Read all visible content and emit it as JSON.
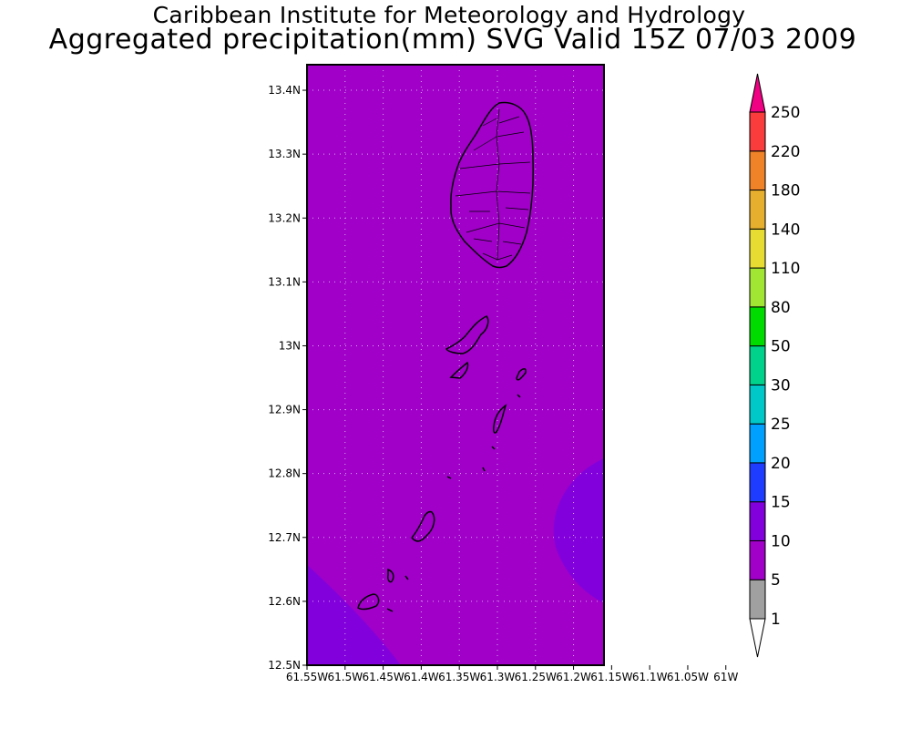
{
  "header": {
    "institute": "Caribbean Institute for Meteorology and Hydrology",
    "product": "Aggregated precipitation(mm) SVG Valid 15Z 07/03 2009"
  },
  "map": {
    "lat_ticks": [
      "12.5N",
      "12.6N",
      "12.7N",
      "12.8N",
      "12.9N",
      "13N",
      "13.1N",
      "13.2N",
      "13.3N",
      "13.4N"
    ],
    "lat_values": [
      12.5,
      12.6,
      12.7,
      12.8,
      12.9,
      13.0,
      13.1,
      13.2,
      13.3,
      13.4
    ],
    "lon_ticks": [
      "61.55W",
      "61.5W",
      "61.45W",
      "61.4W",
      "61.35W",
      "61.3W",
      "61.25W",
      "61.2W",
      "61.15W",
      "61.1W",
      "61.05W",
      "61W"
    ],
    "lon_values": [
      -61.55,
      -61.5,
      -61.45,
      -61.4,
      -61.35,
      -61.3,
      -61.25,
      -61.2,
      -61.15,
      -61.1,
      -61.05,
      -61.0
    ],
    "lat_range": [
      12.5,
      13.44
    ],
    "lon_range": [
      -61.55,
      -61.16
    ],
    "grid": true,
    "fill_color": "#a000c8",
    "wetter_color": "#8200dc"
  },
  "colorbar": {
    "levels": [
      "1",
      "5",
      "10",
      "15",
      "20",
      "25",
      "30",
      "50",
      "80",
      "110",
      "140",
      "180",
      "220",
      "250"
    ],
    "colors": [
      "#ffffff",
      "#a0a0a0",
      "#a000c8",
      "#8200dc",
      "#1e3cff",
      "#00a0ff",
      "#00c8c8",
      "#00d28c",
      "#00dc00",
      "#a0e632",
      "#e6dc32",
      "#e6af2d",
      "#f08228",
      "#fa3c3c",
      "#f00082"
    ]
  }
}
